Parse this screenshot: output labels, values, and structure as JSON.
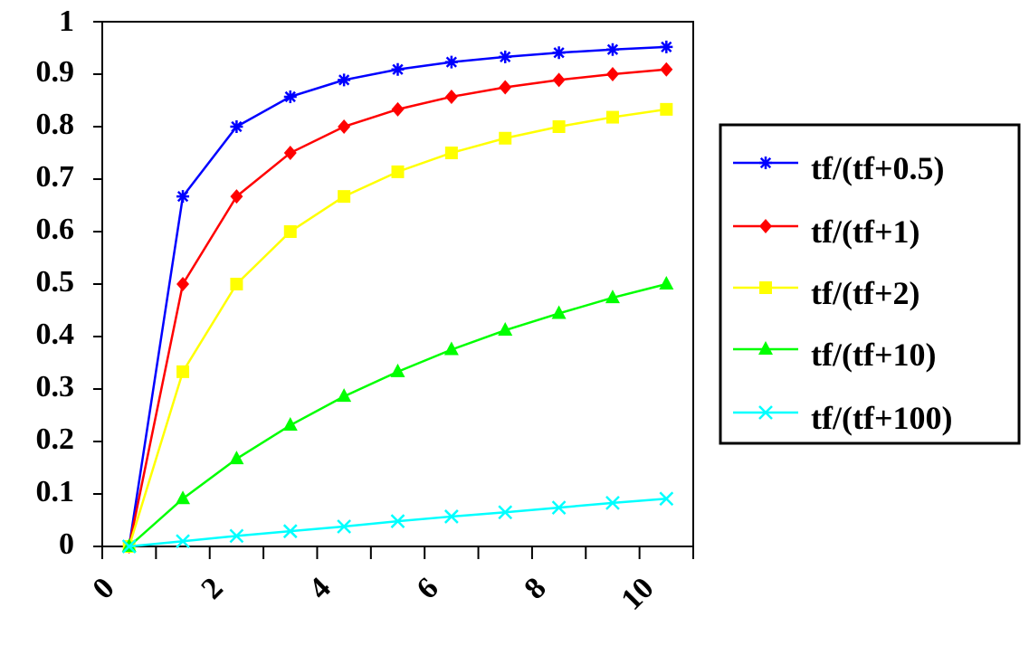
{
  "chart_data": {
    "type": "line",
    "title": "",
    "xlabel": "",
    "ylabel": "",
    "x": [
      0,
      1,
      2,
      3,
      4,
      5,
      6,
      7,
      8,
      9,
      10
    ],
    "x_tick_labels": [
      "0",
      "2",
      "4",
      "6",
      "8",
      "10"
    ],
    "y_tick_labels": [
      "0",
      "0.1",
      "0.2",
      "0.3",
      "0.4",
      "0.5",
      "0.6",
      "0.7",
      "0.8",
      "0.9",
      "1"
    ],
    "ylim": [
      0,
      1
    ],
    "grid": false,
    "legend_position": "right",
    "series": [
      {
        "name": "tf/(tf+0.5)",
        "color": "#0000ff",
        "marker": "asterisk",
        "values": [
          0,
          0.667,
          0.8,
          0.857,
          0.889,
          0.909,
          0.923,
          0.933,
          0.941,
          0.947,
          0.952
        ]
      },
      {
        "name": "tf/(tf+1)",
        "color": "#ff0000",
        "marker": "diamond",
        "values": [
          0,
          0.5,
          0.667,
          0.75,
          0.8,
          0.833,
          0.857,
          0.875,
          0.889,
          0.9,
          0.909
        ]
      },
      {
        "name": "tf/(tf+2)",
        "color": "#ffff00",
        "marker": "square",
        "values": [
          0,
          0.333,
          0.5,
          0.6,
          0.667,
          0.714,
          0.75,
          0.778,
          0.8,
          0.818,
          0.833
        ]
      },
      {
        "name": "tf/(tf+10)",
        "color": "#00ff00",
        "marker": "triangle",
        "values": [
          0,
          0.091,
          0.167,
          0.231,
          0.286,
          0.333,
          0.375,
          0.412,
          0.444,
          0.474,
          0.5
        ]
      },
      {
        "name": "tf/(tf+100)",
        "color": "#00ffff",
        "marker": "x",
        "values": [
          0,
          0.01,
          0.02,
          0.029,
          0.038,
          0.048,
          0.057,
          0.065,
          0.074,
          0.083,
          0.091
        ]
      }
    ]
  }
}
